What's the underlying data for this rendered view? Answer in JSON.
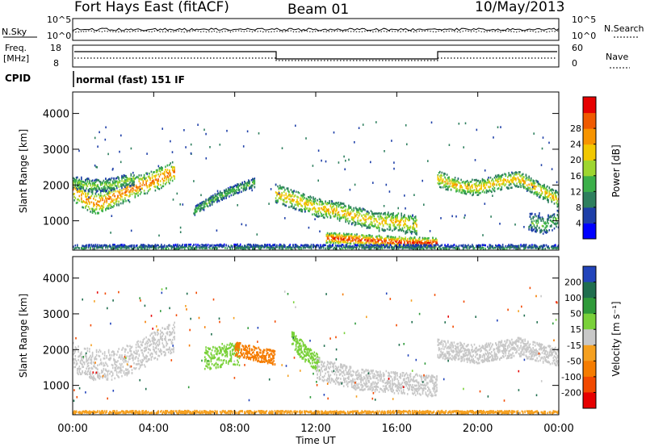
{
  "header": {
    "title": "Fort Hays East (fitACF)",
    "beam": "Beam 01",
    "date": "10/May/2013"
  },
  "noise_panel": {
    "left_label": "N.Sky",
    "right_label": "N.Search",
    "tick_top": "10^5",
    "tick_bottom": "10^0"
  },
  "freq_panel": {
    "left_label_line1": "Freq.",
    "left_label_line2": "[MHz]",
    "right_label": "Nave",
    "left_ticks": [
      "18",
      "8"
    ],
    "right_ticks": [
      "60",
      "0"
    ]
  },
  "cpid": {
    "label": "CPID",
    "value": "normal (fast) 151 IF"
  },
  "chart_data": [
    {
      "type": "heatmap",
      "name": "power",
      "xlabel": "",
      "ylabel": "Slant Range [km]",
      "xlim": [
        0,
        24
      ],
      "ylim": [
        180,
        4600
      ],
      "y_ticks": [
        "1000",
        "2000",
        "3000",
        "4000"
      ],
      "colorbar": {
        "label": "Power [dB]",
        "ticks": [
          "4",
          "8",
          "12",
          "16",
          "20",
          "24",
          "28"
        ],
        "colors": [
          "#0000ff",
          "#1e3fa8",
          "#2e7f5e",
          "#3cb04a",
          "#9ed630",
          "#f2c800",
          "#f79400",
          "#f05a00",
          "#e60000"
        ]
      },
      "bands": [
        {
          "t": [
            0,
            0.5,
            1.2,
            2,
            3,
            4,
            5
          ],
          "range": [
            1900,
            1650,
            1500,
            1700,
            1950,
            2150,
            2400
          ],
          "width": 300,
          "peak_db": 26
        },
        {
          "t": [
            0,
            1,
            2,
            3
          ],
          "range": [
            2100,
            2000,
            2050,
            2200
          ],
          "width": 180,
          "peak_db": 16
        },
        {
          "t": [
            6,
            7,
            8,
            9
          ],
          "range": [
            1300,
            1650,
            1900,
            2100
          ],
          "width": 130,
          "peak_db": 14
        },
        {
          "t": [
            10,
            11,
            12,
            13,
            14,
            15,
            16,
            17
          ],
          "range": [
            1800,
            1600,
            1400,
            1300,
            1150,
            1000,
            1000,
            900
          ],
          "width": 260,
          "peak_db": 22
        },
        {
          "t": [
            12.5,
            14,
            15.5,
            16.5,
            18
          ],
          "range": [
            550,
            500,
            450,
            420,
            400
          ],
          "width": 150,
          "peak_db": 30
        },
        {
          "t": [
            18,
            19,
            20,
            21,
            22,
            23,
            24
          ],
          "range": [
            2200,
            2000,
            1950,
            2100,
            2200,
            1900,
            1600
          ],
          "width": 220,
          "peak_db": 22
        },
        {
          "t": [
            22.5,
            23.3,
            24
          ],
          "range": [
            1000,
            900,
            1100
          ],
          "width": 250,
          "peak_db": 14
        },
        {
          "t": [
            0,
            4,
            8,
            12,
            16,
            20,
            24
          ],
          "range": [
            250,
            250,
            260,
            250,
            250,
            250,
            250
          ],
          "width": 110,
          "peak_db": 10
        }
      ]
    },
    {
      "type": "heatmap",
      "name": "velocity",
      "xlabel": "Time UT",
      "ylabel": "Slant Range [km]",
      "xlim": [
        0,
        24
      ],
      "ylim": [
        180,
        4600
      ],
      "x_ticks": [
        "00:00",
        "04:00",
        "08:00",
        "12:00",
        "16:00",
        "20:00",
        "00:00"
      ],
      "y_ticks": [
        "1000",
        "2000",
        "3000",
        "4000"
      ],
      "colorbar": {
        "label": "Velocity [m s⁻¹]",
        "ticks": [
          "200",
          "100",
          "50",
          "15",
          "-15",
          "-50",
          "-100",
          "-200"
        ],
        "colors": [
          "#2244bb",
          "#1f6e4e",
          "#2f9a3a",
          "#7ad13a",
          "#c8c8c8",
          "#f5a020",
          "#f57c00",
          "#f24a00",
          "#e60000"
        ]
      },
      "bands": [
        {
          "t": [
            0,
            1,
            2,
            3,
            4,
            5
          ],
          "range": [
            1800,
            1600,
            1600,
            1800,
            2100,
            2400
          ],
          "width": 420,
          "vel": -5
        },
        {
          "t": [
            6.5,
            7,
            7.5,
            8.2
          ],
          "range": [
            1800,
            1800,
            1900,
            1900
          ],
          "width": 320,
          "vel": 40
        },
        {
          "t": [
            8,
            9,
            10
          ],
          "range": [
            2050,
            1900,
            1800
          ],
          "width": 200,
          "vel": -60
        },
        {
          "t": [
            10.8,
            11.5,
            12.2
          ],
          "range": [
            2300,
            1900,
            1600
          ],
          "width": 260,
          "vel": 35
        },
        {
          "t": [
            12,
            14,
            16,
            18
          ],
          "range": [
            1500,
            1200,
            1100,
            1000
          ],
          "width": 300,
          "vel": -5
        },
        {
          "t": [
            18,
            20,
            22,
            24
          ],
          "range": [
            2050,
            1900,
            2100,
            1800
          ],
          "width": 260,
          "vel": 0
        },
        {
          "t": [
            0,
            6,
            12,
            18,
            24
          ],
          "range": [
            220,
            230,
            220,
            230,
            220
          ],
          "width": 90,
          "vel": -40
        }
      ]
    }
  ],
  "colors": {
    "frame": "#000000",
    "background": "#ffffff"
  }
}
